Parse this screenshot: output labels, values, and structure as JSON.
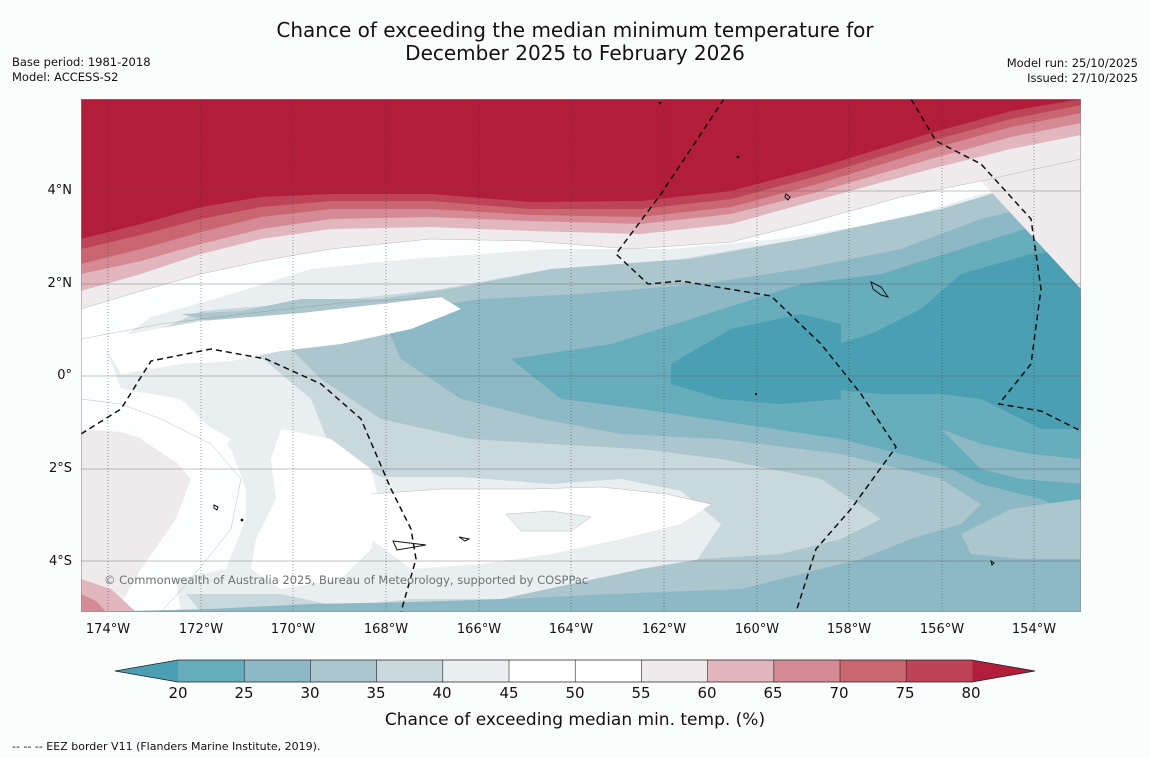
{
  "title": {
    "line1": "Chance of exceeding the median minimum temperature for",
    "line2": "December 2025 to February 2026"
  },
  "meta_left": {
    "base_period": "Base period: 1981-2018",
    "model": "Model: ACCESS-S2"
  },
  "meta_right": {
    "model_run": "Model run: 25/10/2025",
    "issued": "Issued: 27/10/2025"
  },
  "map": {
    "lat_labels": [
      "4°N",
      "2°N",
      "0°",
      "2°S",
      "4°S"
    ],
    "lon_labels": [
      "174°W",
      "172°W",
      "170°W",
      "168°W",
      "166°W",
      "164°W",
      "162°W",
      "160°W",
      "158°W",
      "156°W",
      "154°W"
    ],
    "copyright": "© Commonwealth of Australia 2025, Bureau of Meteorology, supported by COSPPac"
  },
  "colorbar": {
    "ticks": [
      "20",
      "25",
      "30",
      "35",
      "40",
      "45",
      "50",
      "55",
      "60",
      "65",
      "70",
      "75",
      "80"
    ],
    "colors": [
      "#4aa0b2",
      "#68adbc",
      "#8db8c5",
      "#abc6cc",
      "#c9d8dd",
      "#e9eff1",
      "#ffffff",
      "#ffffff",
      "#efebec",
      "#e1b6bd",
      "#d58a95",
      "#c96670",
      "#bd4356",
      "#b21e3a"
    ],
    "label": "Chance of exceeding median min. temp. (%)"
  },
  "footnote": "--  --  -- EEZ border V11 (Flanders Marine Institute, 2019)."
}
